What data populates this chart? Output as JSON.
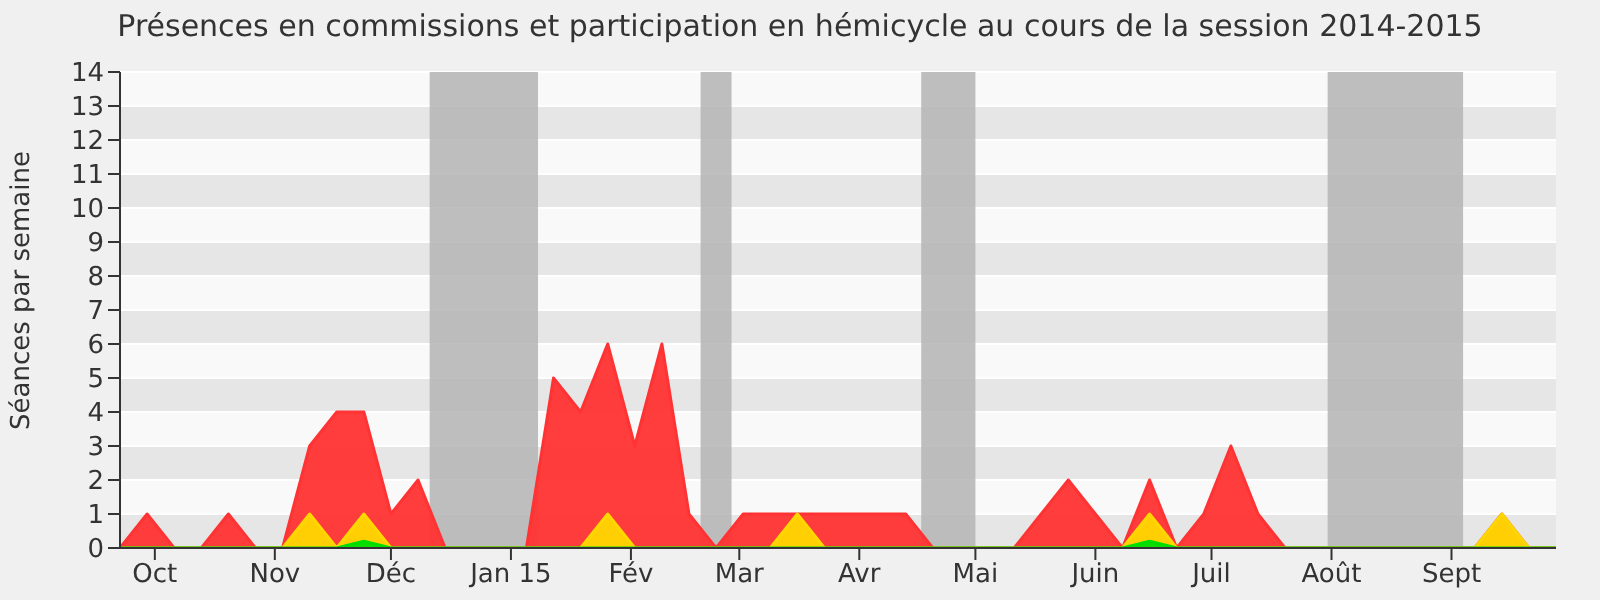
{
  "chart_data": {
    "type": "area",
    "title": "Présences en commissions et participation en hémicycle au cours de la session 2014-2015",
    "ylabel": "Séances par semaine",
    "x": [
      "2014-09-22",
      "2014-09-29",
      "2014-10-06",
      "2014-10-13",
      "2014-10-20",
      "2014-10-27",
      "2014-11-03",
      "2014-11-10",
      "2014-11-17",
      "2014-11-24",
      "2014-12-01",
      "2014-12-08",
      "2014-12-15",
      "2014-12-22",
      "2014-12-29",
      "2015-01-05",
      "2015-01-12",
      "2015-01-19",
      "2015-01-26",
      "2015-02-02",
      "2015-02-09",
      "2015-02-16",
      "2015-02-23",
      "2015-03-02",
      "2015-03-09",
      "2015-03-16",
      "2015-03-23",
      "2015-03-30",
      "2015-04-06",
      "2015-04-13",
      "2015-04-20",
      "2015-04-27",
      "2015-05-04",
      "2015-05-11",
      "2015-05-18",
      "2015-05-25",
      "2015-06-01",
      "2015-06-08",
      "2015-06-15",
      "2015-06-22",
      "2015-06-29",
      "2015-07-06",
      "2015-07-13",
      "2015-07-20",
      "2015-07-27",
      "2015-08-03",
      "2015-08-10",
      "2015-08-17",
      "2015-08-24",
      "2015-08-31",
      "2015-09-07",
      "2015-09-14",
      "2015-09-21",
      "2015-09-28"
    ],
    "series": [
      {
        "color": "#ff3333",
        "values": [
          0,
          1,
          0,
          0,
          1,
          0,
          0,
          3,
          4,
          4,
          1,
          2,
          0,
          0,
          0,
          0,
          5,
          4,
          6,
          3,
          6,
          1,
          0,
          1,
          1,
          1,
          1,
          1,
          1,
          1,
          0,
          0,
          0,
          0,
          1,
          2,
          1,
          0,
          2,
          0,
          1,
          3,
          1,
          0,
          0,
          0,
          0,
          0,
          0,
          0,
          0,
          1,
          0,
          0
        ]
      },
      {
        "color": "#ffd700",
        "values": [
          0,
          0,
          0,
          0,
          0,
          0,
          0,
          1,
          0,
          1,
          0,
          0,
          0,
          0,
          0,
          0,
          0,
          0,
          1,
          0,
          0,
          0,
          0,
          0,
          0,
          1,
          0,
          0,
          0,
          0,
          0,
          0,
          0,
          0,
          0,
          0,
          0,
          0,
          1,
          0,
          0,
          0,
          0,
          0,
          0,
          0,
          0,
          0,
          0,
          0,
          0,
          1,
          0,
          0
        ]
      },
      {
        "color": "#00dd00",
        "values": [
          0,
          0,
          0,
          0,
          0,
          0,
          0,
          0,
          0,
          0.2,
          0,
          0,
          0,
          0,
          0,
          0,
          0,
          0,
          0,
          0,
          0,
          0,
          0,
          0,
          0,
          0,
          0,
          0,
          0,
          0,
          0,
          0,
          0,
          0,
          0,
          0,
          0,
          0,
          0.2,
          0,
          0,
          0,
          0,
          0,
          0,
          0,
          0,
          0,
          0,
          0,
          0,
          0,
          0,
          0
        ]
      }
    ],
    "xlim": [
      "2014-09-22",
      "2015-09-28"
    ],
    "xticks": [
      {
        "value": "2014-10-01",
        "label": "Oct"
      },
      {
        "value": "2014-11-01",
        "label": "Nov"
      },
      {
        "value": "2014-12-01",
        "label": "Déc"
      },
      {
        "value": "2015-01-01",
        "label": "Jan 15"
      },
      {
        "value": "2015-02-01",
        "label": "Fév"
      },
      {
        "value": "2015-03-01",
        "label": "Mar"
      },
      {
        "value": "2015-04-01",
        "label": "Avr"
      },
      {
        "value": "2015-05-01",
        "label": "Mai"
      },
      {
        "value": "2015-06-01",
        "label": "Juin"
      },
      {
        "value": "2015-07-01",
        "label": "Juil"
      },
      {
        "value": "2015-08-01",
        "label": "Août"
      },
      {
        "value": "2015-09-01",
        "label": "Sept"
      }
    ],
    "ylim": [
      0,
      14
    ],
    "yticks": [
      0,
      1,
      2,
      3,
      4,
      5,
      6,
      7,
      8,
      9,
      10,
      11,
      12,
      13,
      14
    ],
    "grid": "y",
    "legend": false,
    "bands": [
      {
        "axis": "x",
        "from": "2014-12-11",
        "to": "2015-01-08",
        "color": "#b4b4b4"
      },
      {
        "axis": "x",
        "from": "2015-02-19",
        "to": "2015-02-27",
        "color": "#b4b4b4"
      },
      {
        "axis": "x",
        "from": "2015-04-17",
        "to": "2015-05-01",
        "color": "#b4b4b4"
      },
      {
        "axis": "x",
        "from": "2015-07-31",
        "to": "2015-09-04",
        "color": "#b4b4b4"
      }
    ]
  }
}
